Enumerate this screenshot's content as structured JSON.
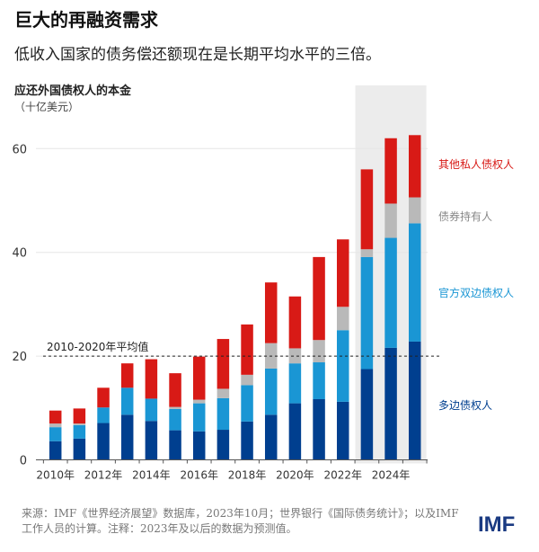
{
  "header": {
    "title": "巨大的再融资需求",
    "subtitle": "低收入国家的债务偿还额现在是长期平均水平的三倍。"
  },
  "chart_data": {
    "type": "bar",
    "stacked": true,
    "ylabel": "应还外国债权人的本金",
    "yunit": "（十亿美元）",
    "ylim": [
      0,
      65
    ],
    "yticks": [
      0,
      20,
      40,
      60
    ],
    "grid": true,
    "categories": [
      "2010",
      "2011",
      "2012",
      "2013",
      "2014",
      "2015",
      "2016",
      "2017",
      "2018",
      "2019",
      "2020",
      "2021",
      "2022",
      "2023",
      "2024",
      "2025"
    ],
    "xtick_labels": [
      "2010年",
      "2012年",
      "2014年",
      "2016年",
      "2018年",
      "2020年",
      "2022年",
      "2024年"
    ],
    "forecast_from": "2023",
    "legend_placement": "right",
    "series": [
      {
        "name": "多边债权人",
        "color": "#003f8f",
        "values": [
          3.6,
          4.1,
          7.1,
          8.7,
          7.5,
          5.7,
          5.5,
          5.8,
          7.4,
          8.7,
          10.9,
          11.7,
          11.2,
          17.5,
          21.6,
          22.8
        ]
      },
      {
        "name": "官方双边债权人",
        "color": "#1a96d4",
        "values": [
          2.7,
          2.6,
          3.0,
          5.2,
          4.3,
          4.1,
          5.4,
          6.1,
          7.0,
          8.9,
          7.7,
          7.1,
          13.8,
          21.6,
          21.2,
          22.8
        ]
      },
      {
        "name": "债券持有人",
        "color": "#b9b9b9",
        "values": [
          0.7,
          0.3,
          0,
          0,
          0,
          0.4,
          0.7,
          1.8,
          2.0,
          4.9,
          2.9,
          4.3,
          4.5,
          1.5,
          6.6,
          5.0
        ]
      },
      {
        "name": "其他私人债权人",
        "color": "#d81a16",
        "values": [
          2.5,
          2.9,
          3.8,
          4.7,
          7.6,
          6.5,
          8.3,
          9.6,
          9.7,
          11.7,
          10.0,
          16.0,
          13.0,
          15.4,
          12.6,
          12.0
        ]
      }
    ],
    "reference_line": {
      "label": "2010-2020年平均值",
      "value": 20
    }
  },
  "footer": {
    "source": "来源：IMF《世界经济展望》数据库，2023年10月；世界银行《国际债务统计》；以及IMF工作人员的计算。注释：2023年及以后的数据为预测值。",
    "logo": "IMF"
  }
}
